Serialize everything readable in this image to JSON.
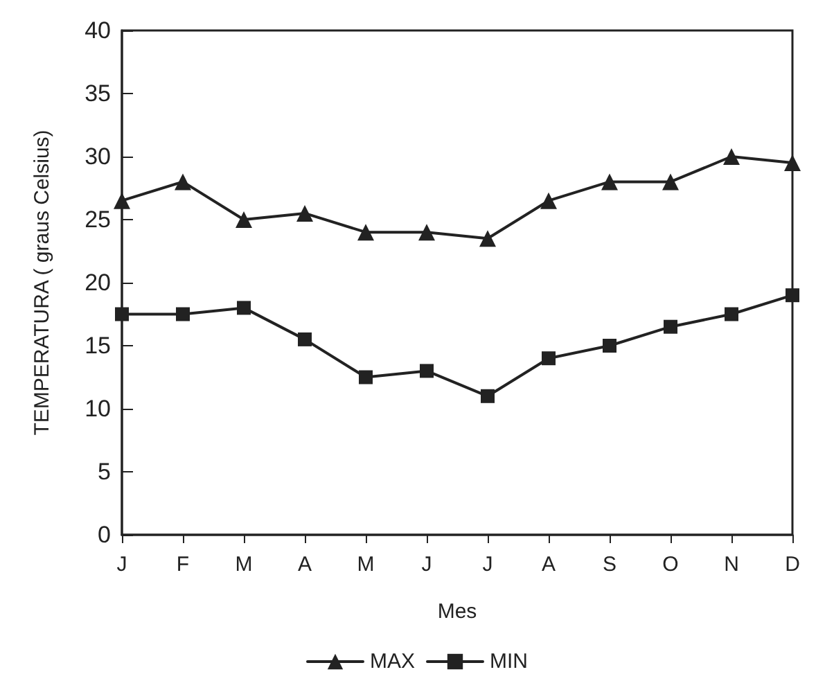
{
  "chart_data": {
    "type": "line",
    "xlabel": "Mes",
    "ylabel": "TEMPERATURA ( graus Celsius)",
    "categories": [
      "J",
      "F",
      "M",
      "A",
      "M",
      "J",
      "J",
      "A",
      "S",
      "O",
      "N",
      "D"
    ],
    "series": [
      {
        "name": "MAX",
        "color": "#222222",
        "marker": "triangle",
        "values": [
          26.5,
          28,
          25,
          25.5,
          24,
          24,
          23.5,
          26.5,
          28,
          28,
          30,
          29.5
        ]
      },
      {
        "name": "MIN",
        "color": "#222222",
        "marker": "square",
        "values": [
          17.5,
          17.5,
          18,
          15.5,
          12.5,
          13,
          11,
          14,
          15,
          16.5,
          17.5,
          19
        ]
      }
    ],
    "ylim": [
      0,
      40
    ],
    "yticks": [
      0,
      5,
      10,
      15,
      20,
      25,
      30,
      35,
      40
    ],
    "grid": false,
    "legend": "bottom",
    "line_style": "solid"
  }
}
